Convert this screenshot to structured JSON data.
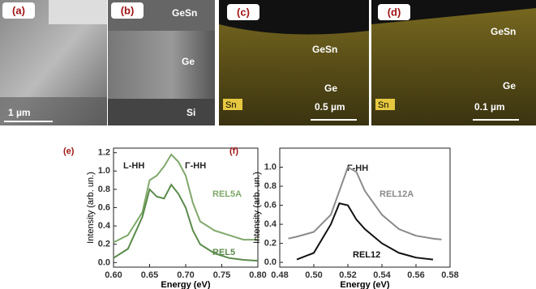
{
  "micrographs": [
    {
      "label": "(a)",
      "texts": [
        "1 µm"
      ]
    },
    {
      "label": "(b)",
      "texts": [
        "GeSn",
        "Ge",
        "Si"
      ]
    },
    {
      "label": "(c)",
      "texts": [
        "GeSn",
        "Ge",
        "Sn",
        "0.5 µm"
      ]
    },
    {
      "label": "(d)",
      "texts": [
        "GeSn",
        "Ge",
        "Sn",
        "0.1 µm"
      ]
    }
  ],
  "chart_data": [
    {
      "type": "line",
      "title": "(e)",
      "x_label": "Energy (eV)",
      "y_label": "Intensity (arb. un.)",
      "annotations": [
        "L-HH",
        "Γ-HH"
      ],
      "x": [
        0.6,
        0.62,
        0.64,
        0.65,
        0.66,
        0.67,
        0.68,
        0.69,
        0.7,
        0.71,
        0.72,
        0.74,
        0.76,
        0.78,
        0.8
      ],
      "series": [
        {
          "name": "REL5A",
          "color": "#7fa86a",
          "values": [
            0.22,
            0.3,
            0.55,
            0.9,
            0.95,
            1.05,
            1.18,
            1.1,
            0.95,
            0.65,
            0.45,
            0.35,
            0.3,
            0.25,
            0.25
          ]
        },
        {
          "name": "REL5",
          "color": "#5a8a4a",
          "values": [
            0.05,
            0.15,
            0.5,
            0.8,
            0.72,
            0.7,
            0.85,
            0.75,
            0.6,
            0.35,
            0.2,
            0.1,
            0.05,
            0.03,
            0.02
          ]
        }
      ],
      "xlim": [
        0.6,
        0.8
      ],
      "xticks": [
        {
          "value": 0.6,
          "label": "0.60"
        },
        0.65,
        {
          "value": 0.7,
          "label": "0.70"
        },
        0.75,
        {
          "value": 0.8,
          "label": "0.80"
        }
      ],
      "ylim": [
        -0.05,
        1.25
      ],
      "yticks": [
        {
          "value": 0,
          "label": "0.0"
        },
        0.2,
        0.4,
        0.6,
        0.8,
        {
          "value": 1,
          "label": "1.0"
        },
        1.2
      ]
    },
    {
      "type": "line",
      "title": "(f)",
      "x_label": "Energy (eV)",
      "y_label": "Intensity (arb. un.)",
      "annotations": [
        "Γ-HH"
      ],
      "x": [
        0.485,
        0.49,
        0.5,
        0.51,
        0.515,
        0.52,
        0.525,
        0.53,
        0.54,
        0.55,
        0.56,
        0.57,
        0.575
      ],
      "series": [
        {
          "name": "REL12A",
          "color": "#8a8a8a",
          "values": [
            0.25,
            0.27,
            0.32,
            0.5,
            0.75,
            1.0,
            0.95,
            0.75,
            0.5,
            0.35,
            0.28,
            0.25,
            0.24
          ]
        },
        {
          "name": "REL12",
          "color": "#111111",
          "values": [
            null,
            0.03,
            0.1,
            0.4,
            0.62,
            0.6,
            0.45,
            0.35,
            0.2,
            0.1,
            0.05,
            0.03,
            null
          ]
        }
      ],
      "xlim": [
        0.48,
        0.58
      ],
      "xticks": [
        0.48,
        {
          "value": 0.5,
          "label": "0.50"
        },
        0.52,
        0.54,
        0.56,
        0.58
      ],
      "ylim": [
        -0.05,
        1.2
      ],
      "yticks": [
        {
          "value": 0,
          "label": "0.0"
        },
        0.2,
        0.4,
        0.6,
        0.8,
        {
          "value": 1,
          "label": "1.0"
        }
      ]
    }
  ]
}
